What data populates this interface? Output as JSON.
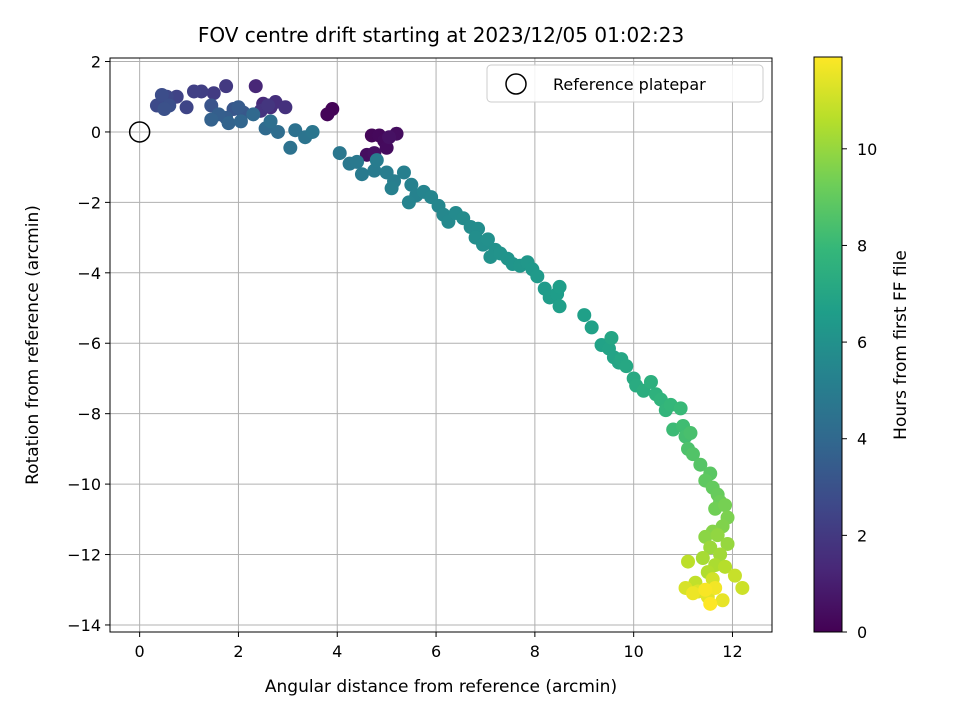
{
  "chart_data": {
    "type": "scatter",
    "title": "FOV centre drift starting at 2023/12/05 01:02:23",
    "xlabel": "Angular distance from reference (arcmin)",
    "ylabel": "Rotation from reference (arcmin)",
    "xlim": [
      -0.6,
      12.8
    ],
    "ylim": [
      -14.2,
      2.1
    ],
    "xticks": [
      0,
      2,
      4,
      6,
      8,
      10,
      12
    ],
    "yticks": [
      2,
      0,
      -2,
      -4,
      -6,
      -8,
      -10,
      -12,
      -14
    ],
    "grid": true,
    "legend": {
      "placement": "top-right",
      "label": "Reference platepar"
    },
    "reference_point": {
      "x": 0,
      "y": 0
    },
    "colorbar": {
      "label": "Hours from first FF file",
      "colormap": "viridis",
      "range": [
        0,
        11.9
      ],
      "ticks": [
        0,
        2,
        4,
        6,
        8,
        10
      ]
    },
    "points": [
      [
        3.9,
        0.65,
        0.1
      ],
      [
        3.8,
        0.5,
        0.15
      ],
      [
        4.7,
        -0.1,
        0.2
      ],
      [
        4.85,
        -0.1,
        0.25
      ],
      [
        4.95,
        -0.25,
        0.3
      ],
      [
        5.0,
        -0.45,
        0.35
      ],
      [
        5.2,
        -0.05,
        0.4
      ],
      [
        4.6,
        -0.65,
        0.45
      ],
      [
        4.75,
        -0.6,
        0.5
      ],
      [
        5.05,
        -0.15,
        0.55
      ],
      [
        2.35,
        1.3,
        1.3
      ],
      [
        2.5,
        0.8,
        1.4
      ],
      [
        2.65,
        0.7,
        1.5
      ],
      [
        2.75,
        0.85,
        1.6
      ],
      [
        2.95,
        0.7,
        1.7
      ],
      [
        2.45,
        0.6,
        1.8
      ],
      [
        2.6,
        0.75,
        1.9
      ],
      [
        1.75,
        1.3,
        2.0
      ],
      [
        1.5,
        1.1,
        2.1
      ],
      [
        1.25,
        1.15,
        2.2
      ],
      [
        1.1,
        1.15,
        2.3
      ],
      [
        0.75,
        1.0,
        2.4
      ],
      [
        0.95,
        0.7,
        2.5
      ],
      [
        0.55,
        1.0,
        2.6
      ],
      [
        0.35,
        0.75,
        2.7
      ],
      [
        0.45,
        1.05,
        2.8
      ],
      [
        0.6,
        0.75,
        2.9
      ],
      [
        0.5,
        0.65,
        3.0
      ],
      [
        1.45,
        0.75,
        3.1
      ],
      [
        1.9,
        0.65,
        3.2
      ],
      [
        2.1,
        0.55,
        3.3
      ],
      [
        2.0,
        0.7,
        3.4
      ],
      [
        1.75,
        0.4,
        3.5
      ],
      [
        1.6,
        0.5,
        3.6
      ],
      [
        1.45,
        0.35,
        3.7
      ],
      [
        1.8,
        0.25,
        3.8
      ],
      [
        2.05,
        0.3,
        3.9
      ],
      [
        2.3,
        0.5,
        4.0
      ],
      [
        2.55,
        0.1,
        4.1
      ],
      [
        2.8,
        0.0,
        4.2
      ],
      [
        2.65,
        0.3,
        4.3
      ],
      [
        3.15,
        0.05,
        4.4
      ],
      [
        3.05,
        -0.45,
        4.5
      ],
      [
        3.35,
        -0.15,
        4.6
      ],
      [
        3.5,
        0.0,
        4.7
      ],
      [
        4.05,
        -0.6,
        4.75
      ],
      [
        4.25,
        -0.9,
        4.8
      ],
      [
        4.4,
        -0.85,
        4.85
      ],
      [
        4.5,
        -1.2,
        4.9
      ],
      [
        4.75,
        -1.1,
        4.95
      ],
      [
        4.8,
        -0.8,
        5.0
      ],
      [
        5.0,
        -1.15,
        5.05
      ],
      [
        5.15,
        -1.4,
        5.1
      ],
      [
        5.35,
        -1.15,
        5.15
      ],
      [
        5.1,
        -1.6,
        5.2
      ],
      [
        5.5,
        -1.5,
        5.25
      ],
      [
        5.6,
        -1.8,
        5.3
      ],
      [
        5.45,
        -2.0,
        5.35
      ],
      [
        5.75,
        -1.7,
        5.4
      ],
      [
        5.9,
        -1.85,
        5.45
      ],
      [
        6.05,
        -2.1,
        5.5
      ],
      [
        6.15,
        -2.35,
        5.55
      ],
      [
        6.25,
        -2.55,
        5.6
      ],
      [
        6.4,
        -2.3,
        5.65
      ],
      [
        6.55,
        -2.45,
        5.7
      ],
      [
        6.7,
        -2.7,
        5.75
      ],
      [
        6.85,
        -2.75,
        5.8
      ],
      [
        6.8,
        -3.0,
        5.85
      ],
      [
        6.95,
        -3.2,
        5.9
      ],
      [
        7.05,
        -3.05,
        5.95
      ],
      [
        7.2,
        -3.35,
        6.0
      ],
      [
        7.1,
        -3.55,
        6.05
      ],
      [
        7.3,
        -3.45,
        6.1
      ],
      [
        7.45,
        -3.6,
        6.15
      ],
      [
        7.55,
        -3.75,
        6.2
      ],
      [
        7.7,
        -3.8,
        6.25
      ],
      [
        7.85,
        -3.7,
        6.3
      ],
      [
        7.95,
        -3.9,
        6.35
      ],
      [
        8.05,
        -4.1,
        6.4
      ],
      [
        8.2,
        -4.45,
        6.45
      ],
      [
        8.3,
        -4.7,
        6.5
      ],
      [
        8.45,
        -4.6,
        6.55
      ],
      [
        8.5,
        -4.4,
        6.6
      ],
      [
        8.5,
        -4.95,
        6.65
      ],
      [
        9.0,
        -5.2,
        6.7
      ],
      [
        9.15,
        -5.55,
        6.75
      ],
      [
        9.35,
        -6.05,
        6.8
      ],
      [
        9.5,
        -6.15,
        6.85
      ],
      [
        9.6,
        -6.4,
        6.9
      ],
      [
        9.7,
        -6.55,
        6.95
      ],
      [
        9.55,
        -5.85,
        7.0
      ],
      [
        9.75,
        -6.45,
        7.05
      ],
      [
        9.85,
        -6.65,
        7.1
      ],
      [
        10.0,
        -7.0,
        7.2
      ],
      [
        10.05,
        -7.2,
        7.3
      ],
      [
        10.2,
        -7.35,
        7.4
      ],
      [
        10.35,
        -7.1,
        7.5
      ],
      [
        10.45,
        -7.45,
        7.6
      ],
      [
        10.55,
        -7.6,
        7.7
      ],
      [
        10.65,
        -7.9,
        7.8
      ],
      [
        10.75,
        -7.75,
        7.9
      ],
      [
        10.95,
        -7.85,
        8.0
      ],
      [
        10.8,
        -8.45,
        8.1
      ],
      [
        11.0,
        -8.35,
        8.2
      ],
      [
        11.05,
        -8.65,
        8.3
      ],
      [
        11.15,
        -8.55,
        8.4
      ],
      [
        11.1,
        -9.0,
        8.5
      ],
      [
        11.2,
        -9.15,
        8.6
      ],
      [
        11.35,
        -9.45,
        8.7
      ],
      [
        11.55,
        -9.7,
        8.8
      ],
      [
        11.45,
        -9.9,
        8.9
      ],
      [
        11.6,
        -10.1,
        9.0
      ],
      [
        11.7,
        -10.3,
        9.1
      ],
      [
        11.75,
        -10.5,
        9.2
      ],
      [
        11.65,
        -10.7,
        9.3
      ],
      [
        11.85,
        -10.6,
        9.4
      ],
      [
        11.9,
        -10.95,
        9.5
      ],
      [
        11.8,
        -11.2,
        9.6
      ],
      [
        11.6,
        -11.35,
        9.7
      ],
      [
        11.45,
        -11.5,
        9.8
      ],
      [
        11.7,
        -11.45,
        9.9
      ],
      [
        11.9,
        -11.7,
        10.0
      ],
      [
        11.55,
        -11.8,
        10.1
      ],
      [
        11.75,
        -12.0,
        10.2
      ],
      [
        11.4,
        -12.1,
        10.3
      ],
      [
        11.65,
        -12.3,
        10.4
      ],
      [
        11.5,
        -12.5,
        10.5
      ],
      [
        11.85,
        -12.35,
        10.6
      ],
      [
        11.1,
        -12.2,
        10.7
      ],
      [
        11.25,
        -12.8,
        10.8
      ],
      [
        12.05,
        -12.6,
        10.9
      ],
      [
        12.2,
        -12.95,
        11.0
      ],
      [
        11.6,
        -12.7,
        11.1
      ],
      [
        11.05,
        -12.95,
        11.2
      ],
      [
        11.3,
        -13.05,
        11.3
      ],
      [
        11.5,
        -13.2,
        11.4
      ],
      [
        11.8,
        -13.3,
        11.5
      ],
      [
        11.2,
        -13.1,
        11.6
      ],
      [
        11.65,
        -12.95,
        11.7
      ],
      [
        11.45,
        -13.0,
        11.8
      ],
      [
        11.55,
        -13.4,
        11.9
      ]
    ]
  }
}
